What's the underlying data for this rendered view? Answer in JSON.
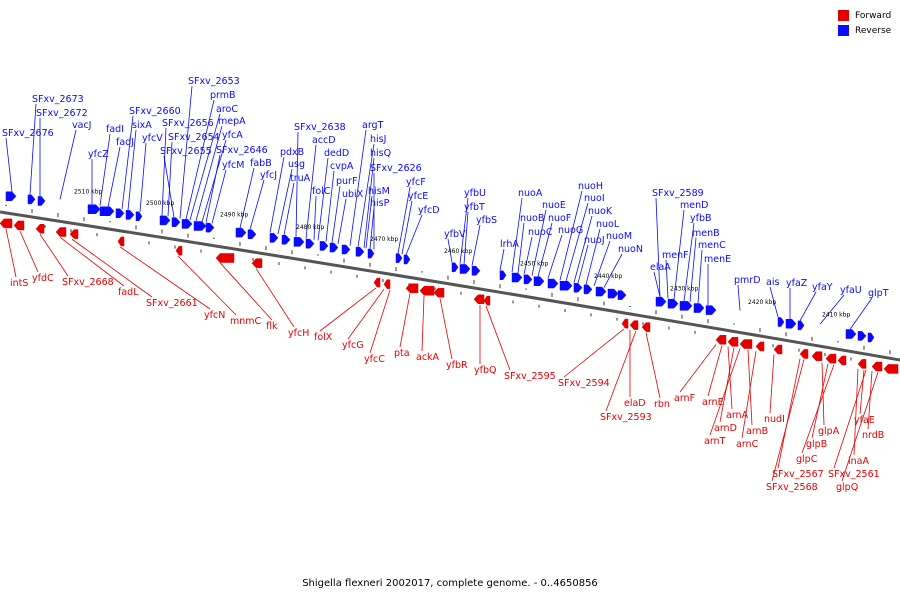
{
  "legend": {
    "forward": {
      "label": "Forward",
      "color": "#e50000"
    },
    "reverse": {
      "label": "Reverse",
      "color": "#0a0aff"
    }
  },
  "caption": "Shigella flexneri 2002017, complete genome. - 0..4650856",
  "axis_color": "#555555",
  "scale_ticks": [
    "2510 kbp",
    "2500 kbp",
    "2490 kbp",
    "2480 kbp",
    "2470 kbp",
    "2460 kbp",
    "2450 kbp",
    "2440 kbp",
    "2430 kbp",
    "2420 kbp",
    "2410 kbp"
  ],
  "reverse_labels": [
    "SFxv_2676",
    "SFxv_2673",
    "SFxv_2672",
    "vacJ",
    "yfcZ",
    "fadI",
    "fadJ",
    "SFxv_2660",
    "sixA",
    "yfcV",
    "SFxv_2656",
    "SFxv_2654",
    "SFxv_2655",
    "SFxv_2653",
    "prmB",
    "aroC",
    "mepA",
    "yfcA",
    "SFxv_2646",
    "yfcM",
    "fabB",
    "yfcJ",
    "pdxB",
    "usg",
    "truA",
    "SFxv_2638",
    "accD",
    "dedD",
    "cvpA",
    "folC",
    "purF",
    "ubiX",
    "argT",
    "hisJ",
    "hisQ",
    "hisM",
    "hisP",
    "SFxv_2626",
    "yfcF",
    "yfcE",
    "yfcD",
    "yfbV",
    "yfbU",
    "yfbT",
    "yfbS",
    "lrhA",
    "nuoA",
    "nuoB",
    "nuoC",
    "nuoE",
    "nuoF",
    "nuoG",
    "nuoH",
    "nuoI",
    "nuoK",
    "nuoJ",
    "nuoL",
    "nuoM",
    "nuoN",
    "SFxv_2589",
    "elaA",
    "menF",
    "menD",
    "yfbB",
    "menB",
    "menC",
    "menE",
    "pmrD",
    "ais",
    "yfaZ",
    "yfaY",
    "yfaU",
    "glpT"
  ],
  "forward_labels": [
    "intS",
    "yfdC",
    "SFxv_2668",
    "fadL",
    "SFxv_2661",
    "yfcN",
    "mnmC",
    "flk",
    "yfcH",
    "folX",
    "yfcG",
    "yfcC",
    "pta",
    "ackA",
    "yfbR",
    "yfbQ",
    "SFxv_2595",
    "SFxv_2594",
    "elaD",
    "SFxv_2593",
    "rbn",
    "arnF",
    "arnE",
    "arnA",
    "arnD",
    "arnT",
    "arnB",
    "arnC",
    "nudI",
    "yfaE",
    "glpA",
    "nrdB",
    "glpB",
    "glpC",
    "inaA",
    "SFxv_2567",
    "SFxv_2568",
    "SFxv_2561",
    "glpQ"
  ]
}
